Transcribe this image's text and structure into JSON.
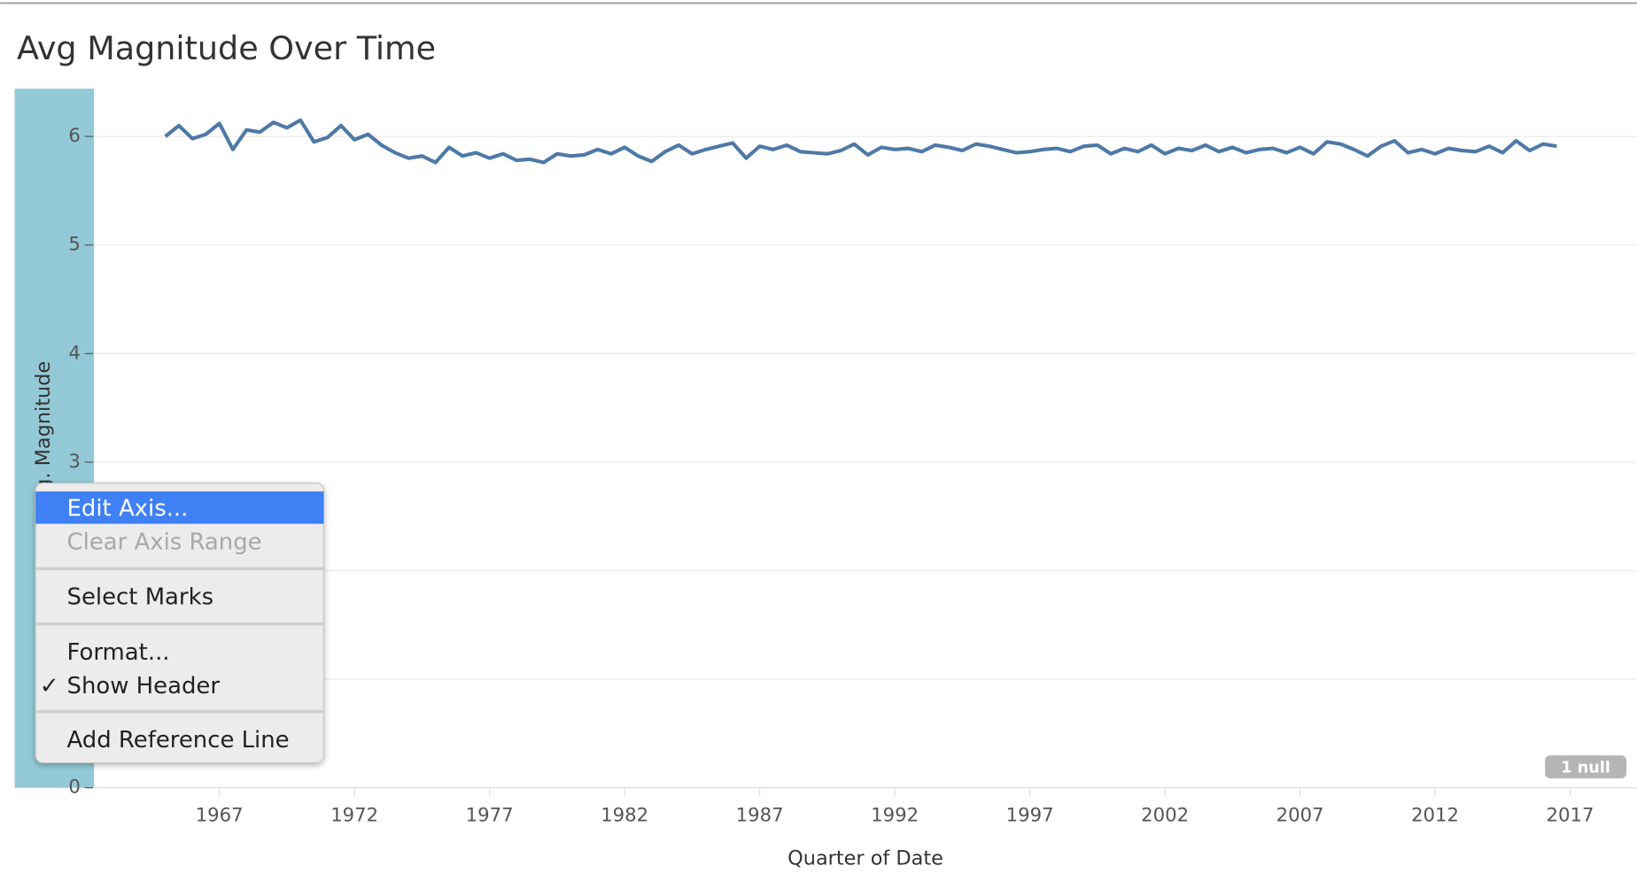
{
  "chart_data": {
    "type": "line",
    "title": "Avg Magnitude Over Time",
    "x_label": "Quarter of Date",
    "y_label": "Avg. Magnitude",
    "x": [
      1965,
      1965.5,
      1966,
      1966.5,
      1967,
      1967.5,
      1968,
      1968.5,
      1969,
      1969.5,
      1970,
      1970.5,
      1971,
      1971.5,
      1972,
      1972.5,
      1973,
      1973.5,
      1974,
      1974.5,
      1975,
      1975.5,
      1976,
      1976.5,
      1977,
      1977.5,
      1978,
      1978.5,
      1979,
      1979.5,
      1980,
      1980.5,
      1981,
      1981.5,
      1982,
      1982.5,
      1983,
      1983.5,
      1984,
      1984.5,
      1985,
      1985.5,
      1986,
      1986.5,
      1987,
      1987.5,
      1988,
      1988.5,
      1989,
      1989.5,
      1990,
      1990.5,
      1991,
      1991.5,
      1992,
      1992.5,
      1993,
      1993.5,
      1994,
      1994.5,
      1995,
      1995.5,
      1996,
      1996.5,
      1997,
      1997.5,
      1998,
      1998.5,
      1999,
      1999.5,
      2000,
      2000.5,
      2001,
      2001.5,
      2002,
      2002.5,
      2003,
      2003.5,
      2004,
      2004.5,
      2005,
      2005.5,
      2006,
      2006.5,
      2007,
      2007.5,
      2008,
      2008.5,
      2009,
      2009.5,
      2010,
      2010.5,
      2011,
      2011.5,
      2012,
      2012.5,
      2013,
      2013.5,
      2014,
      2014.5,
      2015,
      2015.5,
      2016,
      2016.5
    ],
    "series": [
      {
        "name": "Avg. Magnitude",
        "color": "#4e79a7",
        "values": [
          6.0,
          6.1,
          5.98,
          6.02,
          6.12,
          5.88,
          6.06,
          6.04,
          6.13,
          6.08,
          6.15,
          5.95,
          5.99,
          6.1,
          5.97,
          6.02,
          5.92,
          5.85,
          5.8,
          5.82,
          5.76,
          5.9,
          5.82,
          5.85,
          5.8,
          5.84,
          5.78,
          5.79,
          5.76,
          5.84,
          5.82,
          5.83,
          5.88,
          5.84,
          5.9,
          5.82,
          5.77,
          5.86,
          5.92,
          5.84,
          5.88,
          5.91,
          5.94,
          5.8,
          5.91,
          5.88,
          5.92,
          5.86,
          5.85,
          5.84,
          5.87,
          5.93,
          5.83,
          5.9,
          5.88,
          5.89,
          5.86,
          5.92,
          5.9,
          5.87,
          5.93,
          5.91,
          5.88,
          5.85,
          5.86,
          5.88,
          5.89,
          5.86,
          5.91,
          5.92,
          5.84,
          5.89,
          5.86,
          5.92,
          5.84,
          5.89,
          5.87,
          5.92,
          5.86,
          5.9,
          5.85,
          5.88,
          5.89,
          5.85,
          5.9,
          5.84,
          5.95,
          5.93,
          5.88,
          5.82,
          5.91,
          5.96,
          5.85,
          5.88,
          5.84,
          5.89,
          5.87,
          5.86,
          5.91,
          5.85,
          5.96,
          5.87,
          5.93,
          5.91
        ]
      }
    ],
    "xlim": [
      1962.36,
      2019.47
    ],
    "xticks": [
      1967,
      1972,
      1977,
      1982,
      1987,
      1992,
      1997,
      2002,
      2007,
      2012,
      2017
    ],
    "ylim": [
      0,
      6.44
    ],
    "yticks": [
      0,
      1,
      2,
      3,
      4,
      5,
      6
    ],
    "grid": true
  },
  "ui": {
    "null_badge": "1 null",
    "menu": {
      "items": [
        {
          "label": "Edit Axis..."
        },
        {
          "label": "Clear Axis Range"
        },
        {
          "label": "Select Marks"
        },
        {
          "label": "Format..."
        },
        {
          "label": "Show Header",
          "check": "✓"
        },
        {
          "label": "Add Reference Line"
        }
      ]
    }
  }
}
